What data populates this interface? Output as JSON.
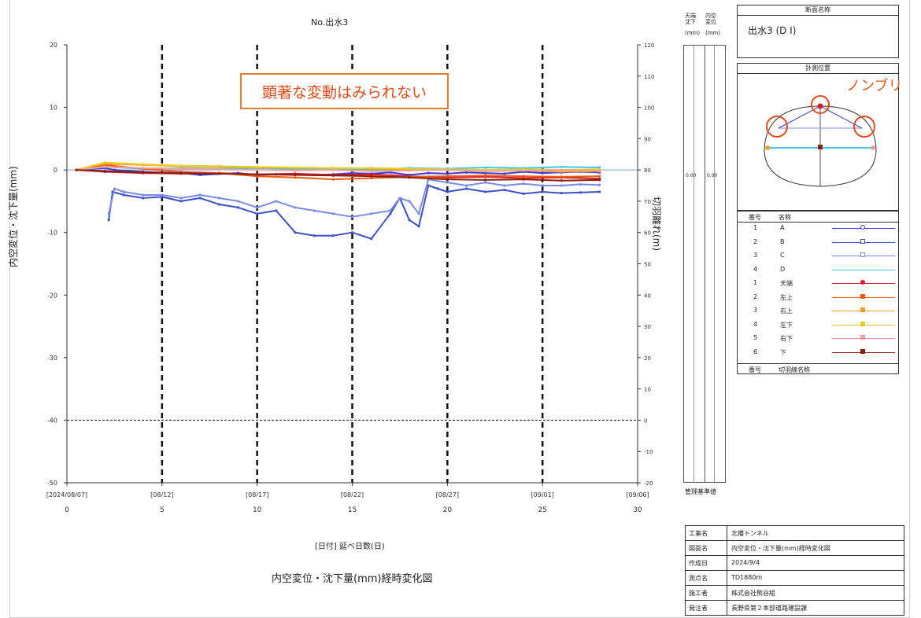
{
  "chart_title": "No.出水3",
  "annotation": "顕著な変動はみられない",
  "callout": "ノンブリ",
  "x_caption": "[日付] 延べ日数(日)",
  "subtitle": "内空変位・沈下量(mm)経時変化図",
  "chart_data": {
    "type": "line",
    "ylabel": "内空変位・沈下量(mm)",
    "y2label": "切羽離れ(m)",
    "ylim": [
      -50,
      20
    ],
    "y2lim": [
      -20,
      120
    ],
    "xlim": [
      0,
      30
    ],
    "yticks": [
      "20",
      "10",
      "0",
      "-10",
      "-20",
      "-30",
      "-40",
      "-50"
    ],
    "y2ticks": [
      "120",
      "110",
      "100",
      "90",
      "80",
      "70",
      "60",
      "50",
      "40",
      "30",
      "20",
      "10",
      "0",
      "-10",
      "-20"
    ],
    "xticks_day": [
      "0",
      "5",
      "10",
      "15",
      "20",
      "25",
      "30"
    ],
    "xticks_date": [
      "[2024/08/07]",
      "[08/12]",
      "[08/17]",
      "[08/22]",
      "[08/27]",
      "[09/01]",
      "[09/06]"
    ],
    "management_line_y": -40,
    "series": [
      {
        "name": "A",
        "color": "#3a3ad8",
        "x": [
          0.5,
          2,
          2.5,
          4,
          6,
          7,
          9,
          10,
          11,
          12,
          13,
          14,
          15,
          16,
          17,
          18,
          19,
          20,
          21,
          22,
          23,
          24,
          25,
          26,
          27,
          28
        ],
        "y": [
          0,
          0.3,
          0,
          -0.3,
          -0.5,
          -0.8,
          -0.5,
          -0.8,
          -0.7,
          -0.6,
          -0.8,
          -0.7,
          -0.5,
          -0.6,
          -0.4,
          -0.8,
          -0.5,
          -0.6,
          -0.4,
          -0.5,
          -0.6,
          -0.3,
          -0.5,
          -0.4,
          -0.3,
          -0.4
        ]
      },
      {
        "name": "B",
        "color": "#3c4fc8",
        "x": [
          2.2,
          2.4,
          3,
          4,
          5,
          6,
          7,
          8,
          9,
          10,
          11,
          12,
          13,
          14,
          15,
          16,
          17,
          17.5,
          18,
          18.5,
          19,
          19.5,
          20,
          21,
          22,
          23,
          24,
          25,
          26,
          27,
          28
        ],
        "y": [
          -8,
          -3.5,
          -4,
          -4.5,
          -4.3,
          -5,
          -4.5,
          -5.5,
          -6,
          -7,
          -6.5,
          -10,
          -10.5,
          -10.5,
          -10,
          -11,
          -7,
          -4.5,
          -8,
          -9,
          -2.5,
          -3,
          -3.5,
          -3,
          -3.5,
          -3.2,
          -3.8,
          -3.5,
          -3.7,
          -3.6,
          -3.5
        ]
      },
      {
        "name": "C",
        "color": "#7a8ae8",
        "x": [
          2.2,
          2.5,
          3,
          4,
          5,
          6,
          7,
          8,
          9,
          10,
          11,
          12,
          13,
          14,
          15,
          16,
          17,
          17.5,
          18,
          18.5,
          19,
          20,
          21,
          22,
          23,
          24,
          25,
          26,
          27,
          28
        ],
        "y": [
          -7,
          -3,
          -3.5,
          -4,
          -4,
          -4.5,
          -4,
          -4.5,
          -5,
          -6,
          -5,
          -6,
          -6.5,
          -7,
          -7.5,
          -7,
          -6.5,
          -4.5,
          -5,
          -7,
          -1.5,
          -2,
          -2.5,
          -2,
          -2.5,
          -2.2,
          -2.5,
          -2.5,
          -2.3,
          -2.4
        ]
      },
      {
        "name": "D",
        "color": "#3fc8e8",
        "x": [
          0.5,
          2,
          4,
          6,
          8,
          10,
          12,
          14,
          16,
          18,
          20,
          22,
          24,
          26,
          28
        ],
        "y": [
          0,
          0.5,
          0.2,
          0.3,
          0.2,
          0.3,
          0.1,
          0.2,
          0,
          0.3,
          0.2,
          0.4,
          0.3,
          0.5,
          0.4
        ]
      },
      {
        "name": "天端",
        "color": "#d81a2a",
        "x": [
          0.5,
          2,
          4,
          6,
          8,
          10,
          12,
          14,
          16,
          18,
          20,
          22,
          24,
          26,
          28
        ],
        "y": [
          0,
          -0.3,
          -0.5,
          -0.6,
          -0.5,
          -0.7,
          -0.6,
          -0.8,
          -0.7,
          -1.0,
          -1.2,
          -1.1,
          -1.3,
          -1.2,
          -1.4
        ]
      },
      {
        "name": "左上",
        "color": "#f05a10",
        "x": [
          0.5,
          2,
          4,
          6,
          8,
          10,
          12,
          14,
          16,
          18,
          20,
          22,
          24,
          26,
          28
        ],
        "y": [
          0,
          0.8,
          0.2,
          -0.3,
          -0.5,
          -1.0,
          -1.2,
          -1.5,
          -1.3,
          -1.1,
          -1.0,
          -0.9,
          -1.0,
          -1.1,
          -1.0
        ]
      },
      {
        "name": "右上",
        "color": "#f0a020",
        "x": [
          0.5,
          2,
          4,
          6,
          8,
          10,
          12,
          14,
          16,
          18,
          20,
          22,
          24,
          26,
          28
        ],
        "y": [
          0,
          1.0,
          0.8,
          0.6,
          0.5,
          0.4,
          0.3,
          0.3,
          0.2,
          0.1,
          0,
          -0.2,
          -0.1,
          -0.3,
          -0.2
        ]
      },
      {
        "name": "左下",
        "color": "#e8d020",
        "x": [
          0.5,
          2,
          4,
          6,
          8,
          10,
          12,
          14,
          16,
          18,
          20,
          22,
          24,
          26,
          28
        ],
        "y": [
          0,
          1.2,
          0.9,
          0.7,
          0.6,
          0.5,
          0.4,
          0.3,
          0.3,
          0.2,
          0.1,
          0,
          0.1,
          0,
          0.1
        ]
      },
      {
        "name": "右下",
        "color": "#f0a0a0",
        "x": [
          0.5,
          2,
          4,
          6,
          8,
          10,
          12,
          14,
          16,
          18,
          20,
          22,
          24,
          26,
          28
        ],
        "y": [
          0,
          0.5,
          0.3,
          0.2,
          0.1,
          0,
          -0.1,
          0,
          -0.2,
          -0.1,
          0,
          -0.2,
          -0.1,
          0,
          -0.1
        ]
      },
      {
        "name": "下",
        "color": "#8a1f10",
        "x": [
          0.5,
          2,
          4,
          6,
          8,
          10,
          12,
          14,
          16,
          18,
          20,
          22,
          24,
          26,
          28
        ],
        "y": [
          0,
          -0.2,
          -0.4,
          -0.5,
          -0.6,
          -0.7,
          -0.8,
          -0.9,
          -1.0,
          -1.2,
          -1.5,
          -1.6,
          -1.5,
          -1.7,
          -1.6
        ]
      }
    ],
    "face_distance": {
      "name": "切羽離れ",
      "color": "#6fa8d8",
      "x": [
        0,
        30
      ],
      "y": [
        80,
        80
      ]
    }
  },
  "gauge": {
    "head1": "天端 沈下",
    "head2": "内空 変位",
    "unit1": "(mm)",
    "unit2": "(mm)",
    "val1": "0.00",
    "val2": "0.00",
    "footer": "管理基準値"
  },
  "section": {
    "header": "断面名称",
    "name": "出水3 (D Ⅰ)",
    "position_header": "計測位置"
  },
  "legend": {
    "col_no": "番号",
    "col_name": "名称",
    "rows": [
      {
        "no": "1",
        "name": "A",
        "color": "#3a3ad8",
        "marker": "circle-open"
      },
      {
        "no": "2",
        "name": "B",
        "color": "#3c4fc8",
        "marker": "square-open"
      },
      {
        "no": "3",
        "name": "C",
        "color": "#7a8ae8",
        "marker": "triangle-open"
      },
      {
        "no": "4",
        "name": "D",
        "color": "#3fc8e8",
        "marker": "none"
      },
      {
        "no": "1",
        "name": "天端",
        "color": "#d81a2a",
        "marker": "circle"
      },
      {
        "no": "2",
        "name": "左上",
        "color": "#f05a10",
        "marker": "square"
      },
      {
        "no": "3",
        "name": "右上",
        "color": "#f0a020",
        "marker": "square"
      },
      {
        "no": "4",
        "name": "左下",
        "color": "#e8d020",
        "marker": "square"
      },
      {
        "no": "5",
        "name": "右下",
        "color": "#f0a0a0",
        "marker": "square"
      },
      {
        "no": "6",
        "name": "下",
        "color": "#8a1f10",
        "marker": "square"
      }
    ],
    "footer_no": "番号",
    "footer_name": "切羽線名称"
  },
  "info": [
    {
      "key": "工事名",
      "value": "北備トンネル"
    },
    {
      "key": "図面名",
      "value": "内空変位・沈下量(mm)経時変化図"
    },
    {
      "key": "作成日",
      "value": "2024/9/4"
    },
    {
      "key": "測点名",
      "value": "TD1880m"
    },
    {
      "key": "施工者",
      "value": "株式会社熊谷組"
    },
    {
      "key": "発注者",
      "value": "長野県第２本部道路建設課"
    }
  ]
}
